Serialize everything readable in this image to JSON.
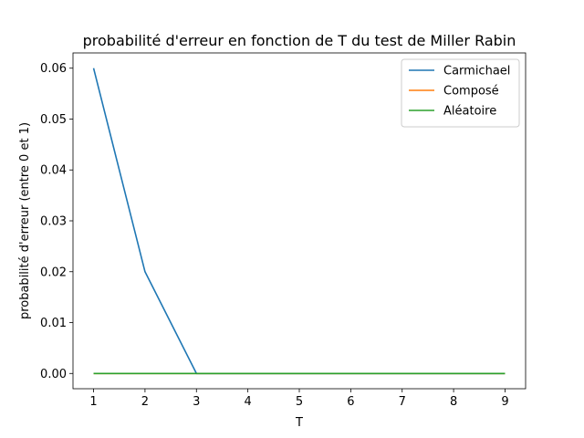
{
  "chart_data": {
    "type": "line",
    "title": "probabilité d'erreur en fonction de T du test de Miller Rabin",
    "xlabel": "T",
    "ylabel": "probabilité d'erreur (entre 0 et 1)",
    "x": [
      1,
      2,
      3,
      4,
      5,
      6,
      7,
      8,
      9
    ],
    "xlim": [
      0.6,
      9.4
    ],
    "ylim": [
      -0.003,
      0.063
    ],
    "xticks": [
      "1",
      "2",
      "3",
      "4",
      "5",
      "6",
      "7",
      "8",
      "9"
    ],
    "yticks": [
      "0.00",
      "0.01",
      "0.02",
      "0.03",
      "0.04",
      "0.05",
      "0.06"
    ],
    "grid": false,
    "legend_position": "top-right",
    "series": [
      {
        "name": "Carmichael",
        "color": "#1f77b4",
        "values": [
          0.06,
          0.02,
          0.0,
          0.0,
          0.0,
          0.0,
          0.0,
          0.0,
          0.0
        ]
      },
      {
        "name": "Composé",
        "color": "#ff7f0e",
        "values": [
          0.0,
          0.0,
          0.0,
          0.0,
          0.0,
          0.0,
          0.0,
          0.0,
          0.0
        ]
      },
      {
        "name": "Aléatoire",
        "color": "#2ca02c",
        "values": [
          0.0,
          0.0,
          0.0,
          0.0,
          0.0,
          0.0,
          0.0,
          0.0,
          0.0
        ]
      }
    ]
  }
}
